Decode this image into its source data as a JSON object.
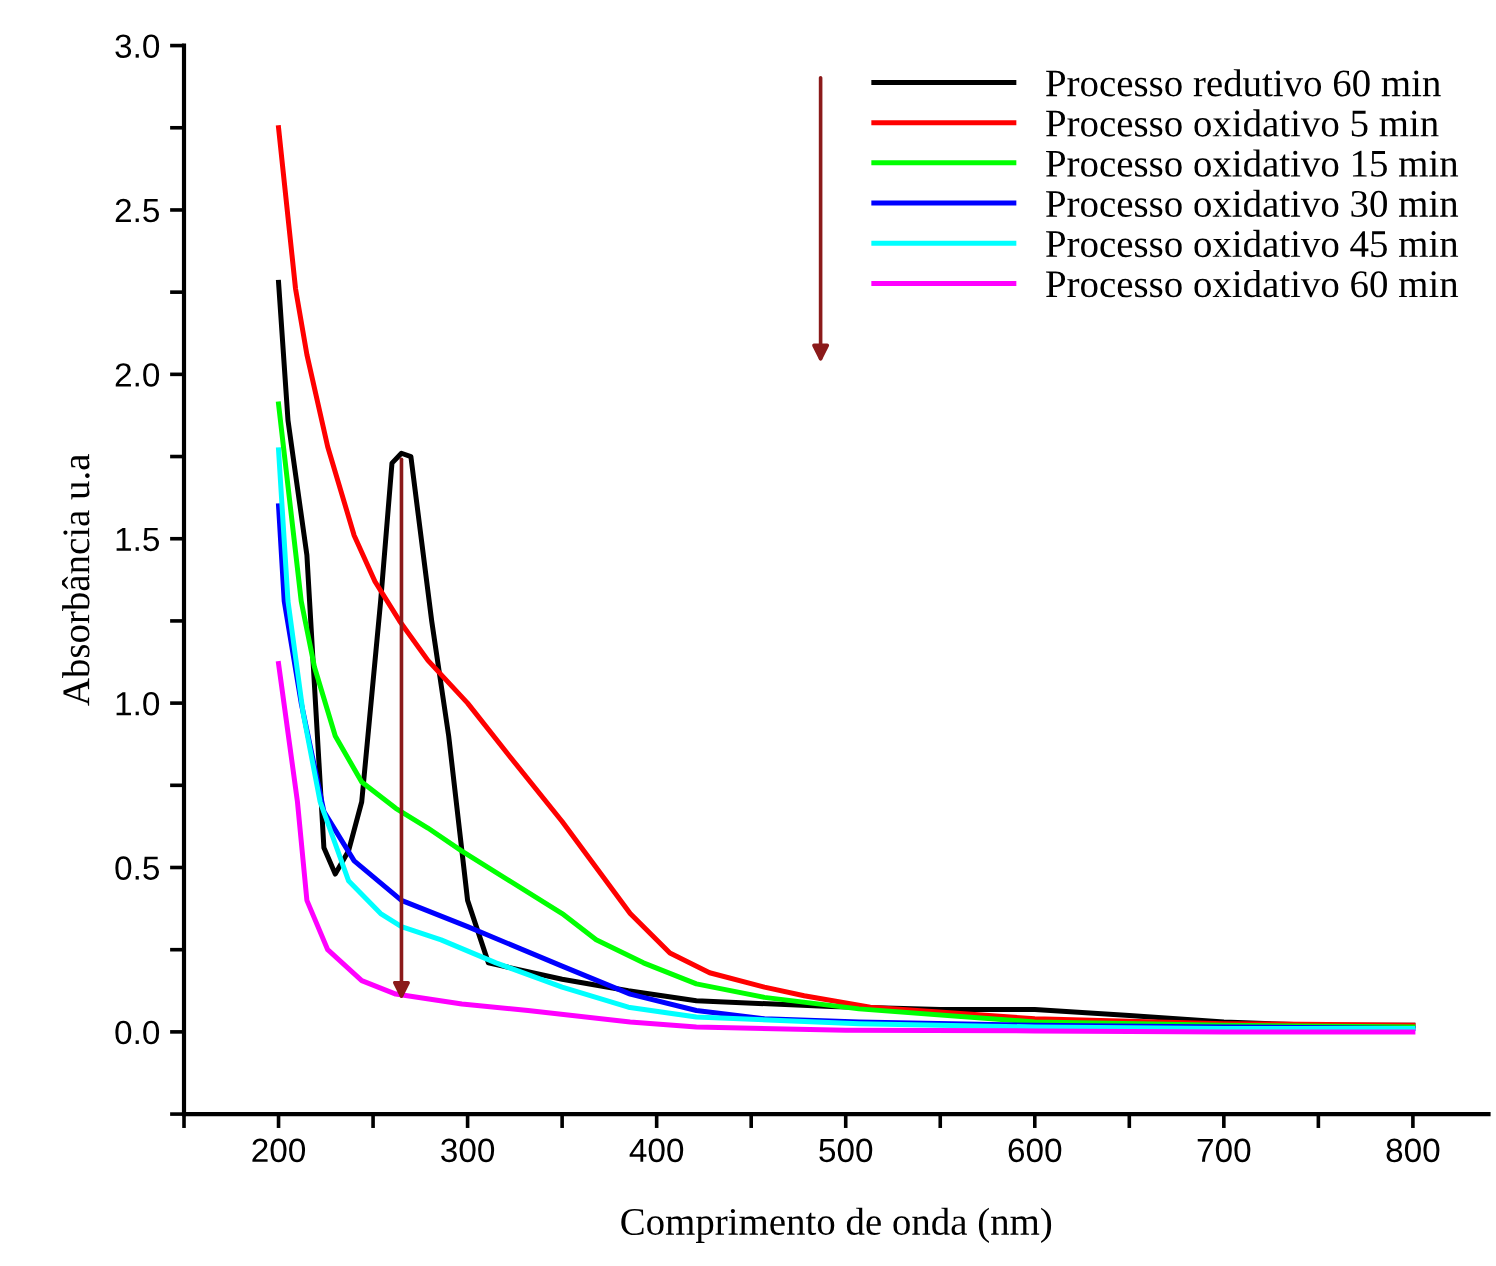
{
  "chart_data": {
    "type": "line",
    "xlabel": "Comprimento de onda (nm)",
    "ylabel": "Absorbância u.a",
    "xlim": [
      150,
      840
    ],
    "ylim": [
      -0.25,
      3.0
    ],
    "xticks": [
      {
        "value": 150,
        "label": null
      },
      200,
      {
        "value": 250,
        "label": null
      },
      300,
      {
        "value": 350,
        "label": null
      },
      400,
      {
        "value": 450,
        "label": null
      },
      500,
      {
        "value": 550,
        "label": null
      },
      600,
      {
        "value": 650,
        "label": null
      },
      700,
      {
        "value": 750,
        "label": null
      },
      800
    ],
    "yticks": [
      {
        "value": -0.25,
        "label": null
      },
      {
        "value": 0.0,
        "label": "0.0"
      },
      {
        "value": 0.25,
        "label": null
      },
      {
        "value": 0.5,
        "label": "0.5"
      },
      {
        "value": 0.75,
        "label": null
      },
      {
        "value": 1.0,
        "label": "1.0"
      },
      {
        "value": 1.25,
        "label": null
      },
      {
        "value": 1.5,
        "label": "1.5"
      },
      {
        "value": 1.75,
        "label": null
      },
      {
        "value": 2.0,
        "label": "2.0"
      },
      {
        "value": 2.25,
        "label": null
      },
      {
        "value": 2.5,
        "label": "2.5"
      },
      {
        "value": 2.75,
        "label": null
      },
      {
        "value": 3.0,
        "label": "3.0"
      }
    ],
    "grid": false,
    "legend": "top right",
    "marker": "none",
    "line_style": "solid",
    "series": [
      {
        "name": "Processo redutivo 60 min",
        "color": "#000000",
        "x": [
          200,
          205,
          215,
          224,
          230,
          237,
          244,
          254,
          260,
          265,
          270,
          281,
          290,
          300,
          311,
          350,
          385,
          421,
          492,
          550,
          600,
          650,
          700,
          750,
          800
        ],
        "values": [
          2.28,
          1.86,
          1.45,
          0.56,
          0.48,
          0.55,
          0.7,
          1.31,
          1.73,
          1.76,
          1.75,
          1.25,
          0.9,
          0.4,
          0.21,
          0.16,
          0.125,
          0.095,
          0.077,
          0.068,
          0.068,
          0.05,
          0.03,
          0.02,
          0.02
        ]
      },
      {
        "name": "Processo oxidativo 5 min",
        "color": "#ff0000",
        "x": [
          200,
          209,
          215,
          226,
          240,
          251,
          264,
          279,
          300,
          322,
          350,
          368,
          386,
          407,
          428,
          457,
          478,
          513,
          600,
          700,
          800
        ],
        "values": [
          2.75,
          2.26,
          2.06,
          1.78,
          1.51,
          1.37,
          1.25,
          1.13,
          1.0,
          0.84,
          0.64,
          0.5,
          0.36,
          0.24,
          0.18,
          0.136,
          0.11,
          0.075,
          0.04,
          0.025,
          0.02
        ]
      },
      {
        "name": "Processo oxidativo 15 min",
        "color": "#00ff00",
        "x": [
          200,
          212,
          219,
          230,
          244,
          262,
          279,
          297,
          322,
          350,
          368,
          393,
          421,
          457,
          507,
          600,
          700,
          800
        ],
        "values": [
          1.91,
          1.31,
          1.11,
          0.9,
          0.76,
          0.68,
          0.62,
          0.55,
          0.46,
          0.36,
          0.28,
          0.21,
          0.146,
          0.105,
          0.07,
          0.03,
          0.02,
          0.015
        ]
      },
      {
        "name": "Processo oxidativo 30 min",
        "color": "#0000ff",
        "x": [
          200,
          203,
          212,
          224,
          240,
          265,
          300,
          350,
          386,
          421,
          457,
          507,
          600,
          700,
          800
        ],
        "values": [
          1.6,
          1.31,
          1.0,
          0.67,
          0.52,
          0.4,
          0.32,
          0.2,
          0.115,
          0.065,
          0.04,
          0.03,
          0.02,
          0.015,
          0.01
        ]
      },
      {
        "name": "Processo oxidativo 45 min",
        "color": "#00ffff",
        "x": [
          200,
          205,
          213,
          222,
          237,
          254,
          265,
          286,
          315,
          350,
          385,
          421,
          507,
          600,
          700,
          800
        ],
        "values": [
          1.77,
          1.31,
          0.97,
          0.7,
          0.46,
          0.36,
          0.32,
          0.28,
          0.21,
          0.136,
          0.075,
          0.045,
          0.025,
          0.015,
          0.01,
          0.01
        ]
      },
      {
        "name": "Processo oxidativo 60 min",
        "color": "#ff00ff",
        "x": [
          200,
          210,
          215,
          226,
          244,
          262,
          297,
          332,
          386,
          421,
          500,
          600,
          700,
          800
        ],
        "values": [
          1.12,
          0.7,
          0.4,
          0.25,
          0.156,
          0.115,
          0.085,
          0.065,
          0.03,
          0.015,
          0.005,
          0.003,
          0.0,
          0.0
        ]
      }
    ]
  }
}
